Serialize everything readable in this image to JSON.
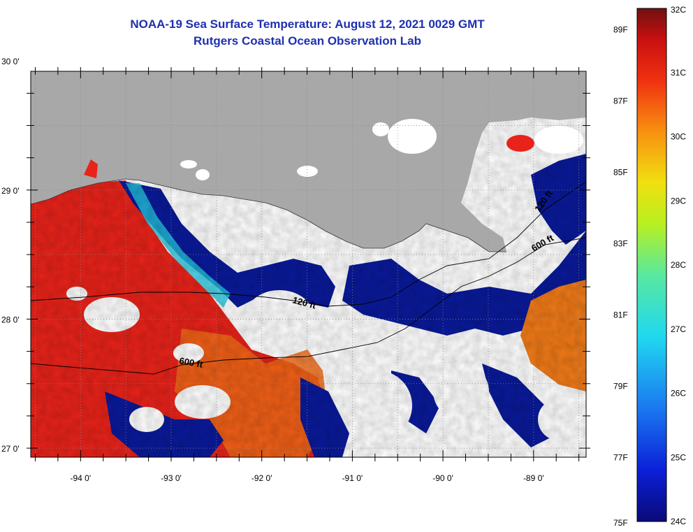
{
  "title": "NOAA-19 Sea Surface Temperature:  August 12, 2021 0029 GMT",
  "subtitle": "Rutgers Coastal Ocean Observation Lab",
  "map": {
    "lon_range": [
      -94.55,
      -88.42
    ],
    "lat_range": [
      26.93,
      29.92
    ],
    "lon_ticks": [
      {
        "value": -94,
        "label": "-94 0'"
      },
      {
        "value": -93,
        "label": "-93 0'"
      },
      {
        "value": -92,
        "label": "-92 0'"
      },
      {
        "value": -91,
        "label": "-91 0'"
      },
      {
        "value": -90,
        "label": "-90 0'"
      },
      {
        "value": -89,
        "label": "-89 0'"
      }
    ],
    "lat_ticks": [
      {
        "value": 30,
        "label": "30 0'"
      },
      {
        "value": 29,
        "label": "29 0'"
      },
      {
        "value": 28,
        "label": "28 0'"
      },
      {
        "value": 27,
        "label": "27 0'"
      }
    ],
    "contour_labels": [
      "120 ft",
      "600 ft",
      "600 ft",
      "120 ft"
    ],
    "colors": {
      "land": "#a8a8a8",
      "cloud": "#ffffff",
      "warm": "#e8231a",
      "cool": "#0a1a9a"
    }
  },
  "colorbar": {
    "celsius": [
      "32C",
      "31C",
      "30C",
      "29C",
      "28C",
      "27C",
      "26C",
      "25C",
      "24C"
    ],
    "fahrenheit": [
      "89F",
      "87F",
      "85F",
      "83F",
      "81F",
      "79F",
      "77F",
      "75F"
    ],
    "celsius_range": [
      24,
      32
    ]
  }
}
